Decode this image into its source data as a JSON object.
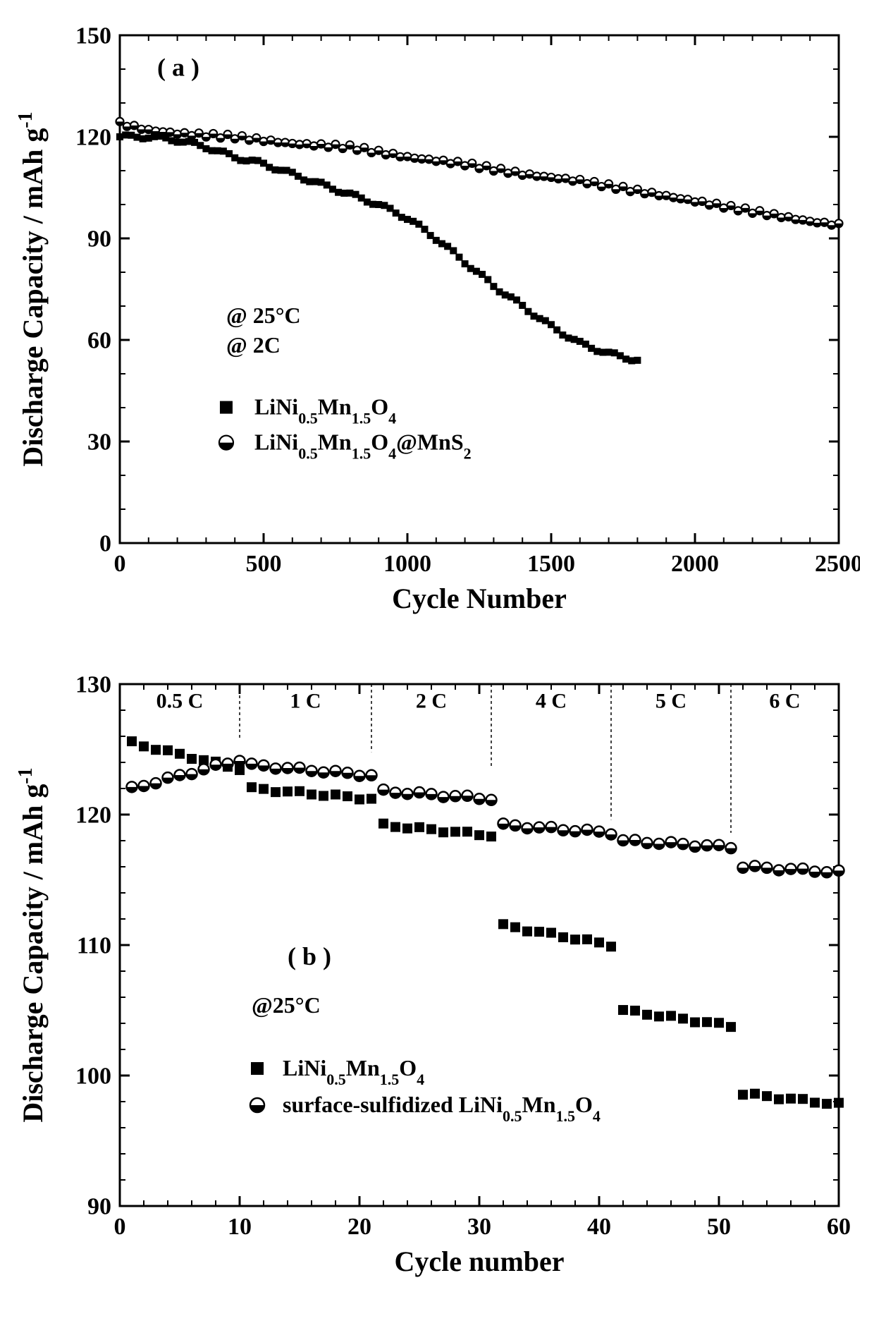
{
  "figure": {
    "background_color": "#ffffff",
    "font_family": "Times New Roman",
    "axis_color": "#000000",
    "axis_stroke_width": 3,
    "tick_len_major": 14,
    "tick_len_minor": 8
  },
  "chart_a": {
    "type": "scatter",
    "panel_label": "( a )",
    "panel_label_fontsize": 36,
    "xlabel": "Cycle Number",
    "ylabel": "Discharge Capacity / mAh g",
    "ylabel_sup": "-1",
    "label_fontsize": 40,
    "tick_fontsize": 34,
    "xlim": [
      0,
      2500
    ],
    "ylim": [
      0,
      150
    ],
    "xtick_major_step": 500,
    "xtick_minor_step": 100,
    "ytick_major_step": 30,
    "ytick_minor_step": 10,
    "conditions": [
      "@ 25°C",
      "@ 2C"
    ],
    "conditions_fontsize": 32,
    "series": [
      {
        "name": "LiNi0.5Mn1.5O4",
        "legend_plain": "LiNi",
        "legend_sub1": "0.5",
        "legend_mid1": "Mn",
        "legend_sub2": "1.5",
        "legend_mid2": "O",
        "legend_sub3": "4",
        "legend_tail": "",
        "marker": "filled-square",
        "marker_size": 10,
        "marker_color": "#000000",
        "data_anchors": [
          [
            0,
            120
          ],
          [
            100,
            120
          ],
          [
            200,
            119
          ],
          [
            300,
            117
          ],
          [
            400,
            114
          ],
          [
            500,
            112
          ],
          [
            600,
            109
          ],
          [
            700,
            106
          ],
          [
            800,
            103
          ],
          [
            900,
            100
          ],
          [
            1000,
            96
          ],
          [
            1100,
            90
          ],
          [
            1200,
            83
          ],
          [
            1300,
            76
          ],
          [
            1400,
            70
          ],
          [
            1500,
            64
          ],
          [
            1600,
            59
          ],
          [
            1700,
            56
          ],
          [
            1800,
            54
          ]
        ],
        "data_x_step": 20
      },
      {
        "name": "LiNi0.5Mn1.5O4@MnS2",
        "legend_plain": "LiNi",
        "legend_sub1": "0.5",
        "legend_mid1": "Mn",
        "legend_sub2": "1.5",
        "legend_mid2": "O",
        "legend_sub3": "4",
        "legend_tail": "@MnS",
        "legend_sub4": "2",
        "marker": "half-circle",
        "marker_size": 11,
        "marker_fill": "#ffffff",
        "marker_stroke": "#000000",
        "marker_stroke_width": 2.2,
        "data_anchors": [
          [
            0,
            124
          ],
          [
            100,
            122
          ],
          [
            200,
            121
          ],
          [
            400,
            120
          ],
          [
            600,
            118
          ],
          [
            800,
            117
          ],
          [
            1000,
            114
          ],
          [
            1200,
            112
          ],
          [
            1400,
            109
          ],
          [
            1600,
            107
          ],
          [
            1800,
            104
          ],
          [
            2000,
            101
          ],
          [
            2200,
            98
          ],
          [
            2400,
            95
          ],
          [
            2500,
            94
          ]
        ],
        "data_x_step": 25
      }
    ]
  },
  "chart_b": {
    "type": "scatter",
    "panel_label": "( b )",
    "panel_label_fontsize": 36,
    "xlabel": "Cycle number",
    "ylabel": "Discharge Capacity / mAh g",
    "ylabel_sup": "-1",
    "label_fontsize": 40,
    "tick_fontsize": 34,
    "xlim": [
      0,
      60
    ],
    "ylim": [
      90,
      130
    ],
    "xtick_major_step": 10,
    "xtick_minor_step": 2,
    "ytick_major_step": 10,
    "ytick_minor_step": 2,
    "conditions": [
      "@25°C"
    ],
    "conditions_fontsize": 32,
    "rate_segments": [
      {
        "label": "0.5 C",
        "x_start": 0,
        "x_end": 10
      },
      {
        "label": "1 C",
        "x_start": 10,
        "x_end": 21
      },
      {
        "label": "2 C",
        "x_start": 21,
        "x_end": 31
      },
      {
        "label": "4 C",
        "x_start": 31,
        "x_end": 41
      },
      {
        "label": "5 C",
        "x_start": 41,
        "x_end": 51
      },
      {
        "label": "6 C",
        "x_start": 51,
        "x_end": 60
      }
    ],
    "rate_label_fontsize": 30,
    "segment_y_top": [
      125.5,
      124.5,
      123.3,
      119.3,
      118.3,
      116.5
    ],
    "series": [
      {
        "name": "LiNi0.5Mn1.5O4",
        "legend_plain": "LiNi",
        "legend_sub1": "0.5",
        "legend_mid1": "Mn",
        "legend_sub2": "1.5",
        "legend_mid2": "O",
        "legend_sub3": "4",
        "legend_tail": "",
        "marker": "filled-square",
        "marker_size": 14,
        "marker_color": "#000000",
        "segments": [
          {
            "x_from": 1,
            "x_to": 10,
            "y_from": 125.5,
            "y_to": 123.5
          },
          {
            "x_from": 11,
            "x_to": 21,
            "y_from": 122.0,
            "y_to": 121.2
          },
          {
            "x_from": 22,
            "x_to": 31,
            "y_from": 119.2,
            "y_to": 118.4
          },
          {
            "x_from": 32,
            "x_to": 41,
            "y_from": 111.5,
            "y_to": 110.0
          },
          {
            "x_from": 42,
            "x_to": 51,
            "y_from": 105.0,
            "y_to": 103.8
          },
          {
            "x_from": 52,
            "x_to": 60,
            "y_from": 98.6,
            "y_to": 97.8
          }
        ]
      },
      {
        "name": "surface-sulfidized LiNi0.5Mn1.5O4",
        "legend_prefix": "surface-sulfidized ",
        "legend_plain": "LiNi",
        "legend_sub1": "0.5",
        "legend_mid1": "Mn",
        "legend_sub2": "1.5",
        "legend_mid2": "O",
        "legend_sub3": "4",
        "legend_tail": "",
        "marker": "half-circle",
        "marker_size": 15,
        "marker_fill": "#ffffff",
        "marker_stroke": "#000000",
        "marker_stroke_width": 2.5,
        "segments": [
          {
            "x_from": 1,
            "x_to": 10,
            "y_from": 122.0,
            "y_to": 124.2
          },
          {
            "x_from": 11,
            "x_to": 21,
            "y_from": 123.8,
            "y_to": 123.0
          },
          {
            "x_from": 22,
            "x_to": 31,
            "y_from": 121.8,
            "y_to": 121.2
          },
          {
            "x_from": 32,
            "x_to": 41,
            "y_from": 119.2,
            "y_to": 118.6
          },
          {
            "x_from": 42,
            "x_to": 51,
            "y_from": 118.0,
            "y_to": 117.5
          },
          {
            "x_from": 52,
            "x_to": 60,
            "y_from": 116.0,
            "y_to": 115.6
          }
        ]
      }
    ]
  }
}
